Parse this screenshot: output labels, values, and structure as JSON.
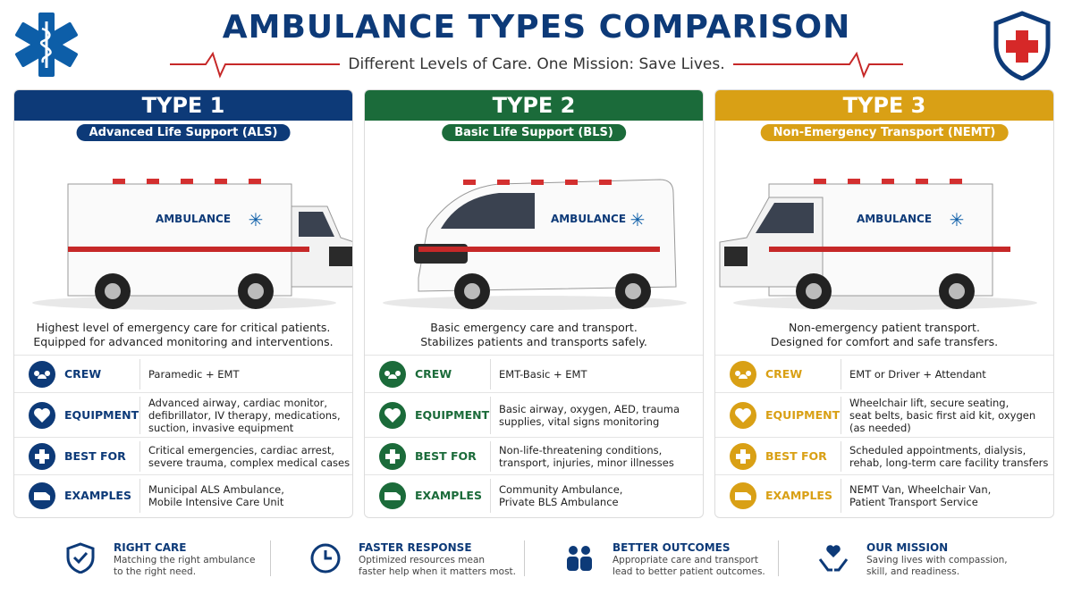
{
  "header": {
    "title": "AMBULANCE TYPES COMPARISON",
    "subtitle": "Different Levels of Care. One Mission: Save Lives."
  },
  "cards": [
    {
      "type": "TYPE 1",
      "level": "Advanced Life Support (ALS)",
      "van_label": "AMBULANCE",
      "color": "#0d3a78",
      "description": [
        "Highest level of emergency care for critical patients.",
        "Equipped for advanced monitoring and interventions."
      ],
      "rows": [
        {
          "label": "CREW",
          "text": [
            "Paramedic + EMT"
          ]
        },
        {
          "label": "EQUIPMENT",
          "text": [
            "Advanced airway, cardiac monitor,",
            "defibrillator, IV therapy, medications,",
            "suction, invasive equipment"
          ]
        },
        {
          "label": "BEST FOR",
          "text": [
            "Critical emergencies, cardiac arrest,",
            "severe trauma, complex medical cases"
          ]
        },
        {
          "label": "EXAMPLES",
          "text": [
            "Municipal ALS Ambulance,",
            "Mobile Intensive Care Unit"
          ]
        }
      ]
    },
    {
      "type": "TYPE 2",
      "level": "Basic Life Support (BLS)",
      "van_label": "AMBULANCE",
      "color": "#1b6b3a",
      "description": [
        "Basic emergency care and transport.",
        "Stabilizes patients and transports safely."
      ],
      "rows": [
        {
          "label": "CREW",
          "text": [
            "EMT-Basic + EMT"
          ]
        },
        {
          "label": "EQUIPMENT",
          "text": [
            "Basic airway, oxygen, AED, trauma",
            "supplies, vital signs monitoring"
          ]
        },
        {
          "label": "BEST FOR",
          "text": [
            "Non-life-threatening conditions,",
            "transport, injuries, minor illnesses"
          ]
        },
        {
          "label": "EXAMPLES",
          "text": [
            "Community Ambulance,",
            "Private BLS Ambulance"
          ]
        }
      ]
    },
    {
      "type": "TYPE 3",
      "level": "Non-Emergency Transport (NEMT)",
      "van_label": "AMBULANCE",
      "color": "#d9a015",
      "description": [
        "Non-emergency patient transport.",
        "Designed for comfort and safe transfers."
      ],
      "rows": [
        {
          "label": "CREW",
          "text": [
            "EMT or Driver + Attendant"
          ]
        },
        {
          "label": "EQUIPMENT",
          "text": [
            "Wheelchair lift, secure seating,",
            "seat belts, basic first aid kit, oxygen",
            "(as needed)"
          ]
        },
        {
          "label": "BEST FOR",
          "text": [
            "Scheduled appointments, dialysis,",
            "rehab, long-term care facility transfers"
          ]
        },
        {
          "label": "EXAMPLES",
          "text": [
            "NEMT Van, Wheelchair Van,",
            "Patient Transport Service"
          ]
        }
      ]
    }
  ],
  "footer": [
    {
      "title": "RIGHT CARE",
      "text": [
        "Matching the right ambulance",
        "to the right need."
      ]
    },
    {
      "title": "FASTER RESPONSE",
      "text": [
        "Optimized resources mean",
        "faster help when it matters most."
      ]
    },
    {
      "title": "BETTER OUTCOMES",
      "text": [
        "Appropriate care and transport",
        "lead to better patient outcomes."
      ]
    },
    {
      "title": "OUR MISSION",
      "text": [
        "Saving lives with compassion,",
        "skill, and readiness."
      ]
    }
  ]
}
